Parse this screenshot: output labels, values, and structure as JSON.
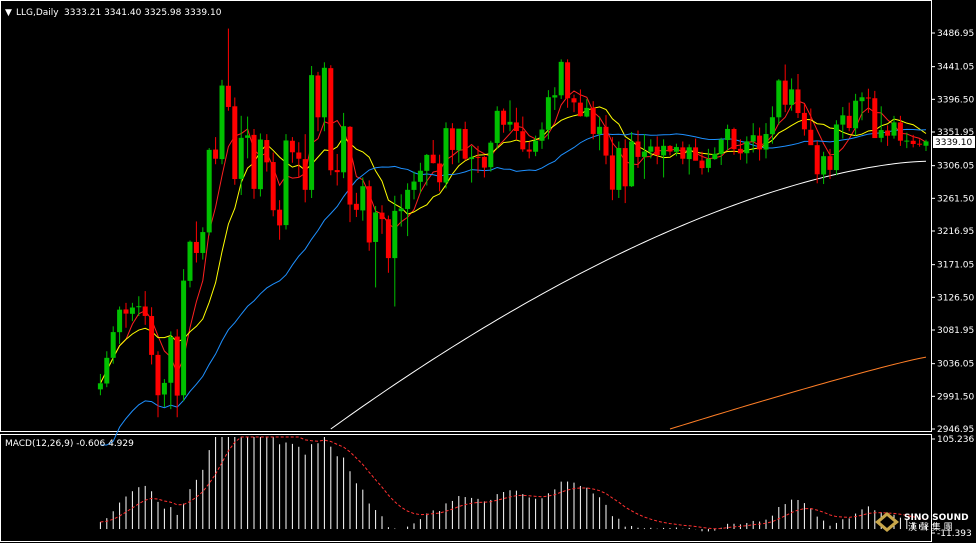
{
  "header": {
    "symbol": "LLG,Daily",
    "ohlc": "3333.21 3341.40 3325.98 3339.10",
    "menu_glyph": "▼"
  },
  "macd": {
    "label": "MACD(12,26,9) -0.606 4.929",
    "ticks": [
      "105.236",
      "-11.393"
    ],
    "ylim": [
      -11.393,
      105.236
    ]
  },
  "price_axis": {
    "ticks": [
      "3486.95",
      "3441.05",
      "3396.50",
      "3351.95",
      "3306.05",
      "3261.50",
      "3216.95",
      "3171.05",
      "3126.50",
      "3081.95",
      "3036.05",
      "2991.50",
      "2946.95"
    ],
    "current": "3339.10",
    "ylim": [
      2946.95,
      3486.95
    ]
  },
  "logo": {
    "line1": "SINO SOUND",
    "line2": "漢 聲 集 團"
  },
  "colors": {
    "up": "#00c000",
    "down": "#ff0000",
    "ma_red": "#ff2020",
    "ma_yellow": "#ffff00",
    "ma_blue": "#1e90ff",
    "ma_white": "#ffffff",
    "ma_orange": "#ff7f27",
    "signal": "#ff3030"
  },
  "chart_data": [
    {
      "type": "candlestick",
      "series": [
        {
          "name": "LLG,Daily",
          "values": [
            [
              3001.0,
              3022.0,
              2993.0,
              3009.3
            ],
            [
              3009.0,
              3053.0,
              3004.0,
              3044.0
            ],
            [
              3044.0,
              3087.0,
              3036.0,
              3079.1
            ],
            [
              3079.0,
              3114.0,
              3063.0,
              3109.7
            ],
            [
              3110.0,
              3119.0,
              3085.0,
              3104.3
            ],
            [
              3104.0,
              3119.0,
              3094.0,
              3112.6
            ],
            [
              3113.0,
              3128.0,
              3101.0,
              3114.4
            ],
            [
              3114.0,
              3135.0,
              3089.0,
              3101.1
            ],
            [
              3101.0,
              3113.0,
              3035.0,
              3048.0
            ],
            [
              3048.0,
              3053.0,
              2963.0,
              2993.0
            ],
            [
              2994.0,
              3015.0,
              2977.0,
              3009.8
            ],
            [
              3010.0,
              3080.0,
              2974.0,
              3072.4
            ],
            [
              3073.0,
              3083.0,
              2963.0,
              2992.5
            ],
            [
              2993.0,
              3165.0,
              2985.0,
              3149.3
            ],
            [
              3149.0,
              3204.0,
              3140.0,
              3202.3
            ],
            [
              3202.0,
              3230.0,
              3174.0,
              3187.0
            ],
            [
              3187.0,
              3222.0,
              3178.0,
              3215.5
            ],
            [
              3215.0,
              3330.0,
              3211.0,
              3327.6
            ],
            [
              3328.0,
              3345.0,
              3308.0,
              3315.5
            ],
            [
              3315.0,
              3423.0,
              3308.0,
              3415.3
            ],
            [
              3415.0,
              3493.0,
              3381.0,
              3386.1
            ],
            [
              3387.0,
              3399.0,
              3280.0,
              3287.8
            ],
            [
              3288.0,
              3374.0,
              3266.0,
              3344.0
            ],
            [
              3344.0,
              3373.0,
              3316.0,
              3347.4
            ],
            [
              3348.0,
              3356.0,
              3261.0,
              3274.4
            ],
            [
              3274.0,
              3350.0,
              3264.0,
              3341.7
            ],
            [
              3341.0,
              3349.0,
              3298.0,
              3310.6
            ],
            [
              3311.0,
              3324.0,
              3237.0,
              3245.3
            ],
            [
              3246.0,
              3259.0,
              3205.0,
              3224.6
            ],
            [
              3225.0,
              3349.0,
              3219.0,
              3340.4
            ],
            [
              3340.0,
              3345.0,
              3310.0,
              3324.3
            ],
            [
              3324.0,
              3338.0,
              3290.0,
              3315.5
            ],
            [
              3315.0,
              3349.0,
              3256.0,
              3273.1
            ],
            [
              3273.0,
              3442.0,
              3262.0,
              3429.5
            ],
            [
              3429.0,
              3434.0,
              3353.0,
              3372.0
            ],
            [
              3372.0,
              3447.0,
              3353.0,
              3439.5
            ],
            [
              3439.0,
              3443.0,
              3293.0,
              3299.8
            ],
            [
              3300.0,
              3322.0,
              3279.0,
              3297.2
            ],
            [
              3297.0,
              3378.0,
              3289.0,
              3359.9
            ],
            [
              3359.0,
              3360.0,
              3229.0,
              3253.0
            ],
            [
              3254.0,
              3269.0,
              3236.0,
              3245.8
            ],
            [
              3245.0,
              3290.0,
              3231.0,
              3278.0
            ],
            [
              3278.0,
              3286.0,
              3190.0,
              3201.3
            ],
            [
              3202.0,
              3251.0,
              3140.0,
              3242.3
            ],
            [
              3242.0,
              3252.0,
              3213.0,
              3233.2
            ],
            [
              3233.0,
              3238.0,
              3160.0,
              3180.0
            ],
            [
              3180.0,
              3265.0,
              3114.0,
              3244.4
            ],
            [
              3244.0,
              3267.0,
              3223.0,
              3247.7
            ],
            [
              3247.0,
              3282.0,
              3210.0,
              3273.1
            ],
            [
              3273.0,
              3298.0,
              3260.0,
              3284.4
            ],
            [
              3284.0,
              3310.0,
              3269.0,
              3299.1
            ],
            [
              3299.0,
              3322.0,
              3279.0,
              3320.7
            ],
            [
              3321.0,
              3341.0,
              3309.0,
              3309.5
            ],
            [
              3309.0,
              3321.0,
              3271.0,
              3283.4
            ],
            [
              3283.0,
              3365.0,
              3275.0,
              3357.2
            ],
            [
              3357.0,
              3364.0,
              3308.0,
              3327.5
            ],
            [
              3327.0,
              3356.0,
              3310.0,
              3356.5
            ],
            [
              3356.0,
              3366.0,
              3313.0,
              3315.5
            ],
            [
              3315.0,
              3333.0,
              3283.0,
              3317.6
            ],
            [
              3318.0,
              3333.0,
              3296.0,
              3317.9
            ],
            [
              3318.0,
              3319.0,
              3290.0,
              3303.4
            ],
            [
              3304.0,
              3340.0,
              3298.0,
              3337.4
            ],
            [
              3337.0,
              3387.0,
              3329.0,
              3380.8
            ],
            [
              3381.0,
              3384.0,
              3351.0,
              3361.8
            ],
            [
              3362.0,
              3395.0,
              3353.0,
              3365.8
            ],
            [
              3365.0,
              3385.0,
              3341.0,
              3353.3
            ],
            [
              3353.0,
              3373.0,
              3325.0,
              3328.3
            ],
            [
              3328.0,
              3339.0,
              3316.0,
              3325.2
            ],
            [
              3325.0,
              3347.0,
              3319.0,
              3340.2
            ],
            [
              3340.0,
              3365.0,
              3329.0,
              3355.3
            ],
            [
              3355.0,
              3409.0,
              3342.0,
              3399.4
            ],
            [
              3399.0,
              3413.0,
              3382.0,
              3402.1
            ],
            [
              3402.0,
              3451.0,
              3397.0,
              3447.6
            ],
            [
              3447.0,
              3451.0,
              3385.0,
              3398.0
            ],
            [
              3398.0,
              3403.0,
              3379.0,
              3392.3
            ],
            [
              3392.0,
              3410.0,
              3373.0,
              3373.5
            ],
            [
              3373.0,
              3397.0,
              3372.0,
              3384.8
            ],
            [
              3385.0,
              3394.0,
              3342.0,
              3349.3
            ],
            [
              3349.0,
              3373.0,
              3327.0,
              3359.0
            ],
            [
              3359.0,
              3375.0,
              3308.0,
              3319.8
            ],
            [
              3320.0,
              3345.0,
              3259.0,
              3273.3
            ],
            [
              3273.0,
              3339.0,
              3262.0,
              3330.2
            ],
            [
              3330.0,
              3342.0,
              3255.0,
              3277.9
            ],
            [
              3278.0,
              3352.0,
              3277.0,
              3339.1
            ],
            [
              3339.0,
              3354.0,
              3303.0,
              3318.0
            ],
            [
              3318.0,
              3349.0,
              3288.0,
              3325.3
            ],
            [
              3325.0,
              3342.0,
              3316.0,
              3332.2
            ],
            [
              3332.0,
              3346.0,
              3308.0,
              3320.6
            ],
            [
              3320.0,
              3342.0,
              3290.0,
              3333.1
            ],
            [
              3333.0,
              3334.0,
              3320.0,
              3325.3
            ],
            [
              3325.0,
              3336.0,
              3319.0,
              3331.4
            ],
            [
              3331.0,
              3339.0,
              3308.0,
              3315.5
            ],
            [
              3315.0,
              3335.0,
              3294.0,
              3331.1
            ],
            [
              3331.0,
              3343.0,
              3313.0,
              3312.8
            ],
            [
              3313.0,
              3325.0,
              3294.0,
              3302.7
            ],
            [
              3303.0,
              3329.0,
              3297.0,
              3315.3
            ],
            [
              3315.0,
              3331.0,
              3314.0,
              3322.2
            ],
            [
              3322.0,
              3344.0,
              3307.0,
              3341.5
            ],
            [
              3341.0,
              3362.0,
              3327.0,
              3356.1
            ],
            [
              3356.0,
              3358.0,
              3321.0,
              3328.6
            ],
            [
              3329.0,
              3342.0,
              3314.0,
              3322.8
            ],
            [
              3323.0,
              3346.0,
              3309.0,
              3339.2
            ],
            [
              3339.0,
              3364.0,
              3324.0,
              3347.6
            ],
            [
              3347.0,
              3358.0,
              3313.0,
              3328.2
            ],
            [
              3328.0,
              3364.0,
              3316.0,
              3349.2
            ],
            [
              3349.0,
              3387.0,
              3336.0,
              3372.1
            ],
            [
              3372.0,
              3424.0,
              3362.0,
              3422.2
            ],
            [
              3422.0,
              3444.0,
              3379.0,
              3389.1
            ],
            [
              3389.0,
              3425.0,
              3381.0,
              3410.1
            ],
            [
              3410.0,
              3431.0,
              3371.0,
              3377.8
            ],
            [
              3378.0,
              3390.0,
              3347.0,
              3355.6
            ],
            [
              3355.0,
              3384.0,
              3335.0,
              3334.0
            ],
            [
              3334.0,
              3340.0,
              3282.0,
              3294.3
            ],
            [
              3294.0,
              3325.0,
              3281.0,
              3319.0
            ],
            [
              3319.0,
              3329.0,
              3288.0,
              3300.3
            ],
            [
              3300.0,
              3368.0,
              3293.0,
              3362.2
            ],
            [
              3362.0,
              3386.0,
              3343.0,
              3374.7
            ],
            [
              3374.0,
              3392.0,
              3353.0,
              3357.4
            ],
            [
              3357.0,
              3404.0,
              3347.0,
              3394.6
            ],
            [
              3394.0,
              3406.0,
              3368.0,
              3399.3
            ],
            [
              3399.0,
              3411.0,
              3378.0,
              3398.0
            ],
            [
              3398.0,
              3408.0,
              3372.0,
              3343.7
            ],
            [
              3344.0,
              3387.0,
              3338.0,
              3354.6
            ],
            [
              3354.0,
              3361.0,
              3333.0,
              3346.9
            ],
            [
              3347.0,
              3374.0,
              3343.0,
              3365.1
            ],
            [
              3365.0,
              3374.0,
              3333.0,
              3340.1
            ],
            [
              3340.0,
              3351.0,
              3330.0,
              3340.2
            ],
            [
              3340.0,
              3348.0,
              3331.0,
              3335.6
            ],
            [
              3336.0,
              3342.0,
              3332.0,
              3335.6
            ],
            [
              3333.2,
              3341.4,
              3326.0,
              3339.1
            ]
          ]
        }
      ],
      "ma_periods": [
        5,
        10,
        30,
        100,
        200
      ],
      "ylim": [
        2946.95,
        3486.95
      ]
    },
    {
      "type": "bar",
      "title": "MACD(12,26,9) -0.606 4.929",
      "ylim": [
        -11.393,
        105.236
      ]
    }
  ]
}
